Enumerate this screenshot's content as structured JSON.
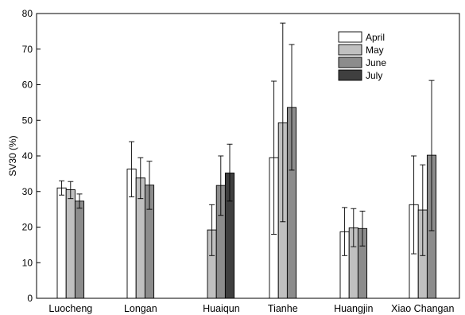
{
  "chart_data": {
    "type": "bar",
    "ylabel": "SV30 (%)",
    "ylim": [
      0,
      80
    ],
    "yticks": [
      0,
      10,
      20,
      30,
      40,
      50,
      60,
      70,
      80
    ],
    "legend_position": "top-right",
    "grid": false,
    "categories": [
      "Luocheng",
      "Longan",
      "Huaiqun",
      "Tianhe",
      "Huangjin",
      "Xiao Changan"
    ],
    "series": [
      {
        "name": "April",
        "color": "#ffffff",
        "values": [
          31.0,
          36.3,
          null,
          39.5,
          18.7,
          26.3
        ],
        "err_low": [
          29.0,
          28.5,
          null,
          18.0,
          12.0,
          12.5
        ],
        "err_high": [
          33.0,
          44.0,
          null,
          61.0,
          25.5,
          40.0
        ]
      },
      {
        "name": "May",
        "color": "#c0c0c0",
        "values": [
          30.5,
          33.8,
          19.2,
          49.3,
          19.8,
          24.8
        ],
        "err_low": [
          28.0,
          28.0,
          12.0,
          21.5,
          14.5,
          12.0
        ],
        "err_high": [
          32.8,
          39.5,
          26.3,
          77.3,
          25.2,
          37.5
        ]
      },
      {
        "name": "June",
        "color": "#8c8c8c",
        "values": [
          27.3,
          31.8,
          31.7,
          53.6,
          19.6,
          40.2
        ],
        "err_low": [
          25.3,
          25.0,
          23.3,
          36.0,
          14.7,
          19.0
        ],
        "err_high": [
          29.3,
          38.5,
          40.0,
          71.3,
          24.5,
          61.2
        ]
      },
      {
        "name": "July",
        "color": "#3f3f3f",
        "values": [
          null,
          null,
          35.2,
          null,
          null,
          null
        ],
        "err_low": [
          null,
          null,
          27.3,
          null,
          null,
          null
        ],
        "err_high": [
          null,
          null,
          43.3,
          null,
          null,
          null
        ]
      }
    ]
  }
}
